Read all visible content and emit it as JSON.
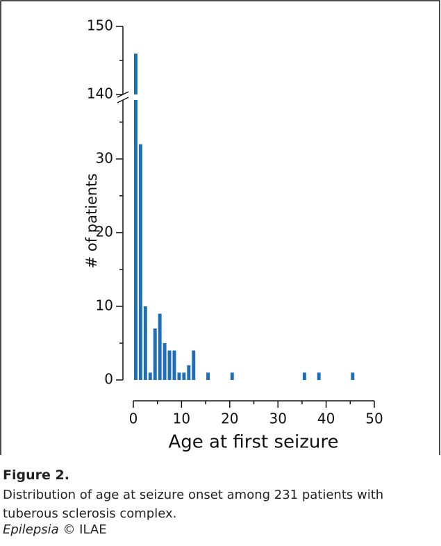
{
  "chart_data": {
    "type": "bar",
    "x": [
      0,
      1,
      2,
      3,
      4,
      5,
      6,
      7,
      8,
      9,
      10,
      11,
      12,
      15,
      20,
      35,
      38,
      45
    ],
    "values": [
      146,
      32,
      10,
      1,
      7,
      9,
      5,
      4,
      4,
      1,
      1,
      2,
      4,
      1,
      1,
      1,
      1,
      1
    ],
    "color": "#1f6fb8",
    "xlabel": "Age at first seizure",
    "ylabel": "# of patients",
    "xlim": [
      0,
      50
    ],
    "xticks": [
      0,
      10,
      20,
      30,
      40,
      50
    ],
    "xminor": [
      5,
      15,
      25,
      35,
      45
    ],
    "ylim": [
      0,
      150
    ],
    "axis_break": [
      38,
      140
    ],
    "yticks": [
      0,
      10,
      20,
      30,
      140,
      150
    ],
    "yminor": [
      5,
      15,
      25,
      35,
      145
    ]
  },
  "caption": {
    "label": "Figure 2.",
    "text": "Distribution of age at seizure onset among 231 patients with tuberous sclerosis complex.",
    "journal": "Epilepsia",
    "credit": "© ILAE"
  }
}
